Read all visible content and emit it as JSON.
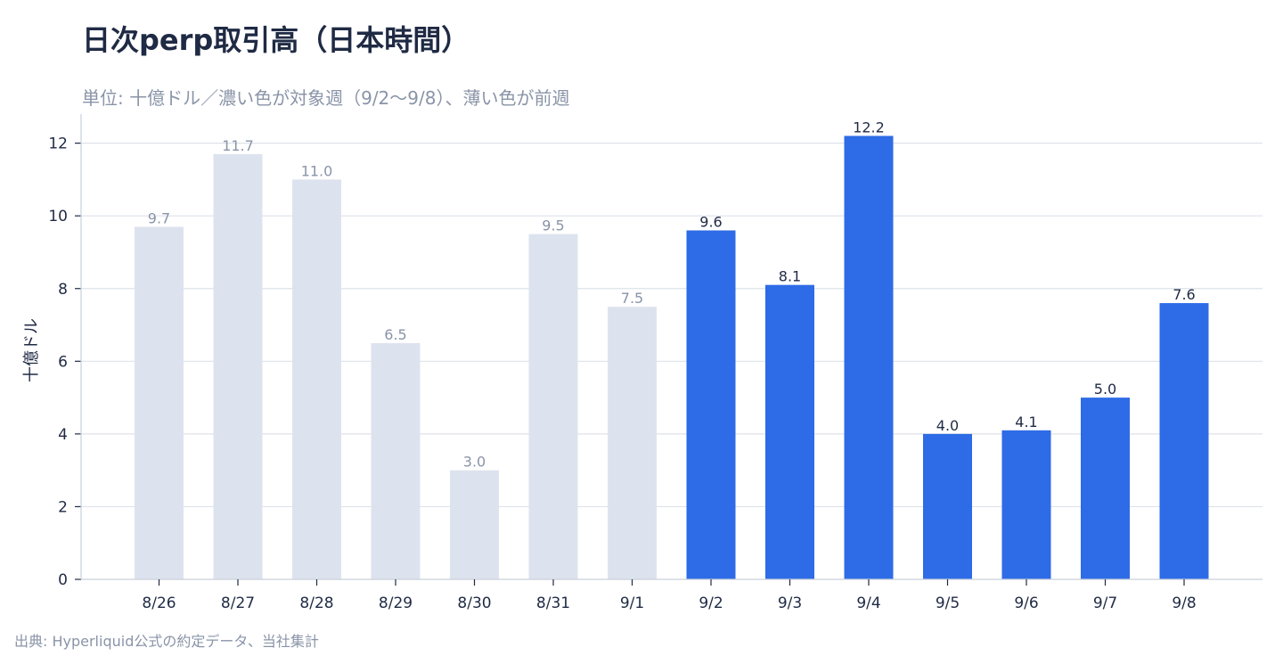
{
  "header": {
    "title": "日次perp取引高（日本時間）",
    "subtitle": "単位: 十億ドル／濃い色が対象週（9/2〜9/8）、薄い色が前週"
  },
  "footer": {
    "source": "出典: Hyperliquid公式の約定データ、当社集計"
  },
  "colors": {
    "current_week": "#2e6be6",
    "previous_week": "#dde3ee",
    "current_label": "#1f2a44",
    "previous_label": "#8a94a8",
    "grid": "#dde2ea",
    "axis": "#c9d0db"
  },
  "chart_data": {
    "type": "bar",
    "title": "日次perp取引高（日本時間）",
    "ylabel": "十億ドル",
    "xlabel": "",
    "ylim": [
      0,
      12.8
    ],
    "yticks": [
      0,
      2,
      4,
      6,
      8,
      10,
      12
    ],
    "grid": true,
    "categories": [
      "8/26",
      "8/27",
      "8/28",
      "8/29",
      "8/30",
      "8/31",
      "9/1",
      "9/2",
      "9/3",
      "9/4",
      "9/5",
      "9/6",
      "9/7",
      "9/8"
    ],
    "values": [
      9.7,
      11.7,
      11.0,
      6.5,
      3.0,
      9.5,
      7.5,
      9.6,
      8.1,
      12.2,
      4.0,
      4.1,
      5.0,
      7.6
    ],
    "labels": [
      "9.7",
      "11.7",
      "11.0",
      "6.5",
      "3.0",
      "9.5",
      "7.5",
      "9.6",
      "8.1",
      "12.2",
      "4.0",
      "4.1",
      "5.0",
      "7.6"
    ],
    "period": [
      "previous",
      "previous",
      "previous",
      "previous",
      "previous",
      "previous",
      "previous",
      "current",
      "current",
      "current",
      "current",
      "current",
      "current",
      "current"
    ]
  }
}
